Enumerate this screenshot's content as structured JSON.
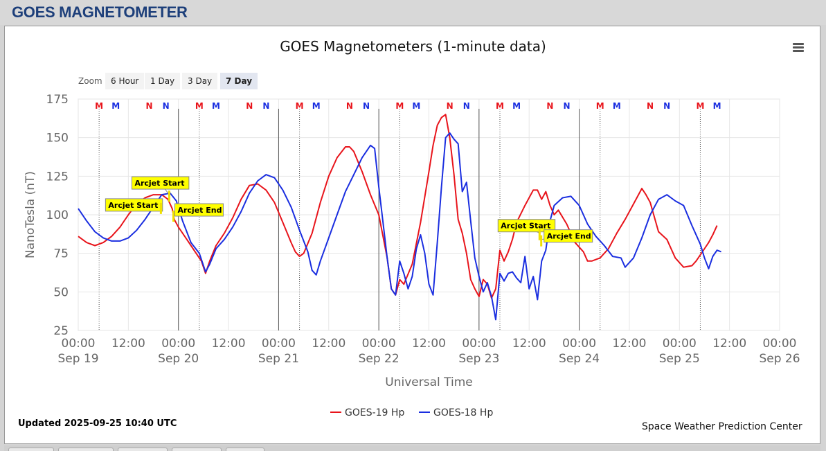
{
  "page": {
    "title": "GOES MAGNETOMETER"
  },
  "zoom": {
    "label": "Zoom",
    "buttons": [
      "6 Hour",
      "1 Day",
      "3 Day",
      "7 Day"
    ],
    "active": "7 Day"
  },
  "footer": {
    "updated": "Updated 2025-09-25 10:40 UTC",
    "credit": "Space Weather Prediction Center"
  },
  "colors": {
    "goes19": "#e8141b",
    "goes18": "#1a2ee0",
    "annotation_bg": "#ffff00",
    "title_color": "#1d3f7a"
  },
  "chart_data": {
    "type": "line",
    "title": "GOES Magnetometers (1-minute data)",
    "xlabel": "Universal Time",
    "ylabel": "NanoTesla (nT)",
    "ylim": [
      25,
      175
    ],
    "yticks": [
      25,
      50,
      75,
      100,
      125,
      150,
      175
    ],
    "xlim_hours": [
      0,
      168
    ],
    "xticks": [
      {
        "h": 0,
        "time": "00:00",
        "date": "Sep 19"
      },
      {
        "h": 12,
        "time": "12:00",
        "date": ""
      },
      {
        "h": 24,
        "time": "00:00",
        "date": "Sep 20"
      },
      {
        "h": 36,
        "time": "12:00",
        "date": ""
      },
      {
        "h": 48,
        "time": "00:00",
        "date": "Sep 21"
      },
      {
        "h": 60,
        "time": "12:00",
        "date": ""
      },
      {
        "h": 72,
        "time": "00:00",
        "date": "Sep 22"
      },
      {
        "h": 84,
        "time": "12:00",
        "date": ""
      },
      {
        "h": 96,
        "time": "00:00",
        "date": "Sep 23"
      },
      {
        "h": 108,
        "time": "12:00",
        "date": ""
      },
      {
        "h": 120,
        "time": "00:00",
        "date": "Sep 24"
      },
      {
        "h": 132,
        "time": "12:00",
        "date": ""
      },
      {
        "h": 144,
        "time": "00:00",
        "date": "Sep 25"
      },
      {
        "h": 156,
        "time": "12:00",
        "date": ""
      },
      {
        "h": 168,
        "time": "00:00",
        "date": "Sep 26"
      }
    ],
    "grid": true,
    "legend_position": "bottom-center",
    "mn_markers": [
      {
        "h": 5,
        "label": "M",
        "series": "GOES-19 Hp"
      },
      {
        "h": 9,
        "label": "M",
        "series": "GOES-18 Hp"
      },
      {
        "h": 17,
        "label": "N",
        "series": "GOES-19 Hp"
      },
      {
        "h": 21,
        "label": "N",
        "series": "GOES-18 Hp"
      },
      {
        "h": 29,
        "label": "M",
        "series": "GOES-19 Hp"
      },
      {
        "h": 33,
        "label": "M",
        "series": "GOES-18 Hp"
      },
      {
        "h": 41,
        "label": "N",
        "series": "GOES-19 Hp"
      },
      {
        "h": 45,
        "label": "N",
        "series": "GOES-18 Hp"
      },
      {
        "h": 53,
        "label": "M",
        "series": "GOES-19 Hp"
      },
      {
        "h": 57,
        "label": "M",
        "series": "GOES-18 Hp"
      },
      {
        "h": 65,
        "label": "N",
        "series": "GOES-19 Hp"
      },
      {
        "h": 69,
        "label": "N",
        "series": "GOES-18 Hp"
      },
      {
        "h": 77,
        "label": "M",
        "series": "GOES-19 Hp"
      },
      {
        "h": 81,
        "label": "M",
        "series": "GOES-18 Hp"
      },
      {
        "h": 89,
        "label": "N",
        "series": "GOES-19 Hp"
      },
      {
        "h": 93,
        "label": "N",
        "series": "GOES-18 Hp"
      },
      {
        "h": 101,
        "label": "M",
        "series": "GOES-19 Hp"
      },
      {
        "h": 105,
        "label": "M",
        "series": "GOES-18 Hp"
      },
      {
        "h": 113,
        "label": "N",
        "series": "GOES-19 Hp"
      },
      {
        "h": 117,
        "label": "N",
        "series": "GOES-18 Hp"
      },
      {
        "h": 125,
        "label": "M",
        "series": "GOES-19 Hp"
      },
      {
        "h": 129,
        "label": "M",
        "series": "GOES-18 Hp"
      },
      {
        "h": 137,
        "label": "N",
        "series": "GOES-19 Hp"
      },
      {
        "h": 141,
        "label": "N",
        "series": "GOES-18 Hp"
      },
      {
        "h": 149,
        "label": "M",
        "series": "GOES-19 Hp"
      },
      {
        "h": 153,
        "label": "M",
        "series": "GOES-18 Hp"
      }
    ],
    "dotted_lines_h": [
      5,
      29,
      53,
      77,
      101,
      125,
      149
    ],
    "solid_lines_h": [
      24,
      48,
      72,
      96,
      120
    ],
    "annotations": [
      {
        "text": "Arcjet Start",
        "h": 21.8,
        "y": 113
      },
      {
        "text": "Arcjet Start",
        "h": 19.8,
        "y": 105
      },
      {
        "text": "Arcjet End",
        "h": 22.8,
        "y": 100
      },
      {
        "text": "Arcjet Start",
        "h": 110.5,
        "y": 88
      },
      {
        "text": "Arcjet End",
        "h": 110.9,
        "y": 84
      }
    ],
    "series": [
      {
        "name": "GOES-19 Hp",
        "color": "#e8141b",
        "x": [
          0,
          2,
          4,
          6,
          8,
          10,
          12,
          14,
          16,
          18,
          20,
          21.5,
          22.5,
          23,
          24,
          26,
          28,
          29.5,
          30.5,
          31.5,
          33,
          35,
          37,
          39,
          41,
          43,
          45,
          47,
          49,
          51,
          52,
          53,
          54,
          56,
          58,
          60,
          62,
          64,
          65,
          66,
          68,
          70,
          72,
          73,
          74,
          75,
          76,
          77,
          78,
          80,
          82,
          84,
          85,
          86,
          87,
          88,
          89,
          90,
          91,
          92,
          93,
          94,
          95,
          96,
          97,
          98,
          99,
          100,
          101,
          102,
          103,
          104,
          105,
          107,
          109,
          110,
          111,
          112,
          113,
          114,
          115,
          117,
          119,
          121,
          122,
          123,
          125,
          127,
          129,
          131,
          133,
          135,
          136,
          137,
          139,
          141,
          143,
          145,
          147,
          148,
          150,
          151,
          152,
          153
        ],
        "values": [
          86,
          82,
          80,
          82,
          86,
          92,
          100,
          107,
          111,
          113,
          113,
          110,
          104,
          97,
          92,
          84,
          76,
          70,
          62,
          70,
          80,
          88,
          98,
          110,
          119,
          120,
          116,
          108,
          95,
          82,
          76,
          73,
          75,
          88,
          108,
          125,
          137,
          144,
          144,
          141,
          128,
          113,
          100,
          86,
          72,
          52,
          48,
          58,
          55,
          68,
          95,
          128,
          145,
          158,
          163,
          165,
          150,
          126,
          97,
          88,
          75,
          58,
          52,
          47,
          58,
          55,
          46,
          52,
          77,
          70,
          76,
          84,
          95,
          106,
          116,
          116,
          110,
          115,
          106,
          100,
          103,
          94,
          82,
          76,
          70,
          70,
          72,
          78,
          88,
          97,
          107,
          117,
          113,
          108,
          89,
          84,
          72,
          66,
          67,
          70,
          78,
          82,
          87,
          93
        ]
      },
      {
        "name": "GOES-18 Hp",
        "color": "#1a2ee0",
        "x": [
          0,
          2,
          4,
          6,
          8,
          10,
          12,
          14,
          16,
          18,
          20,
          22,
          23.5,
          25,
          27,
          29,
          30.5,
          31.5,
          33,
          35,
          37,
          39,
          41,
          43,
          45,
          47,
          49,
          51,
          53,
          55,
          56,
          57,
          58,
          60,
          62,
          64,
          66,
          68,
          70,
          71,
          72,
          73,
          74,
          75,
          76,
          77,
          78,
          79,
          80,
          81,
          82,
          83,
          84,
          85,
          86,
          87,
          88,
          89,
          90,
          91,
          92,
          93,
          94,
          95,
          96,
          97,
          98,
          99,
          100,
          101,
          102,
          103,
          104,
          105,
          106,
          107,
          108,
          109,
          110,
          111,
          112,
          113,
          114,
          116,
          118,
          120,
          122,
          124,
          126,
          128,
          130,
          131,
          133,
          135,
          137,
          139,
          141,
          143,
          145,
          147,
          149,
          150,
          151,
          152,
          153,
          154
        ],
        "values": [
          104,
          96,
          89,
          85,
          83,
          83,
          85,
          90,
          97,
          105,
          113,
          114,
          109,
          96,
          82,
          75,
          63,
          68,
          78,
          84,
          92,
          102,
          114,
          122,
          126,
          124,
          116,
          105,
          90,
          76,
          64,
          61,
          70,
          85,
          100,
          115,
          126,
          137,
          145,
          143,
          118,
          95,
          72,
          52,
          48,
          70,
          62,
          52,
          60,
          78,
          87,
          75,
          55,
          48,
          82,
          118,
          150,
          153,
          149,
          146,
          115,
          121,
          96,
          72,
          60,
          50,
          56,
          47,
          32,
          62,
          57,
          62,
          63,
          59,
          56,
          73,
          52,
          60,
          45,
          70,
          77,
          96,
          106,
          111,
          112,
          106,
          94,
          86,
          80,
          73,
          72,
          66,
          72,
          85,
          100,
          110,
          113,
          109,
          106,
          93,
          81,
          72,
          65,
          73,
          77,
          76
        ]
      }
    ]
  }
}
